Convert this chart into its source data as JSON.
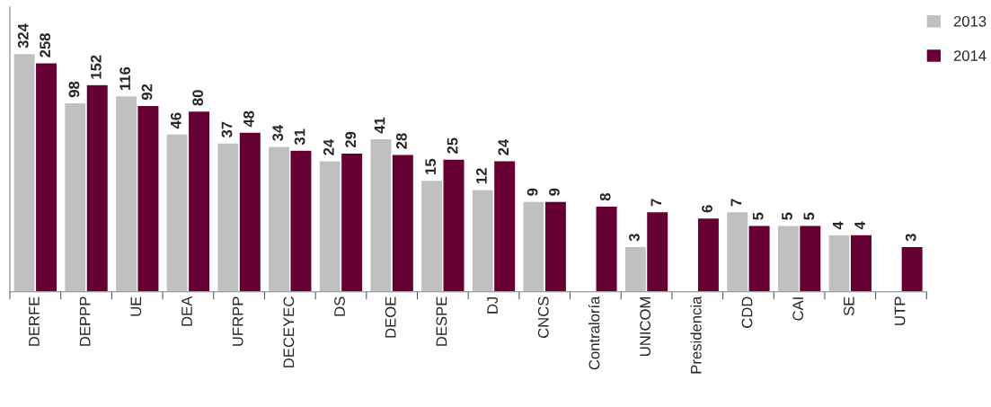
{
  "chart_data": {
    "type": "bar",
    "categories": [
      "DERFE",
      "DEPPP",
      "UE",
      "DEA",
      "UFRPP",
      "DECEYEC",
      "DS",
      "DEOE",
      "DESPE",
      "DJ",
      "CNCS",
      "Contraloría",
      "UNICOM",
      "Presidencia",
      "CDD",
      "CAI",
      "SE",
      "UTP"
    ],
    "series": [
      {
        "name": "2013",
        "color": "#c0c0c0",
        "values": [
          324,
          98,
          116,
          46,
          37,
          34,
          24,
          41,
          15,
          12,
          9,
          null,
          3,
          null,
          7,
          5,
          4,
          null
        ]
      },
      {
        "name": "2014",
        "color": "#660033",
        "values": [
          258,
          152,
          92,
          80,
          48,
          31,
          29,
          28,
          25,
          24,
          9,
          8,
          7,
          6,
          5,
          5,
          4,
          3
        ]
      }
    ],
    "log": true,
    "ylim": [
      1,
      1000
    ],
    "tick_labels": "x",
    "data_labels": true,
    "legend": "top right",
    "grid": false
  }
}
